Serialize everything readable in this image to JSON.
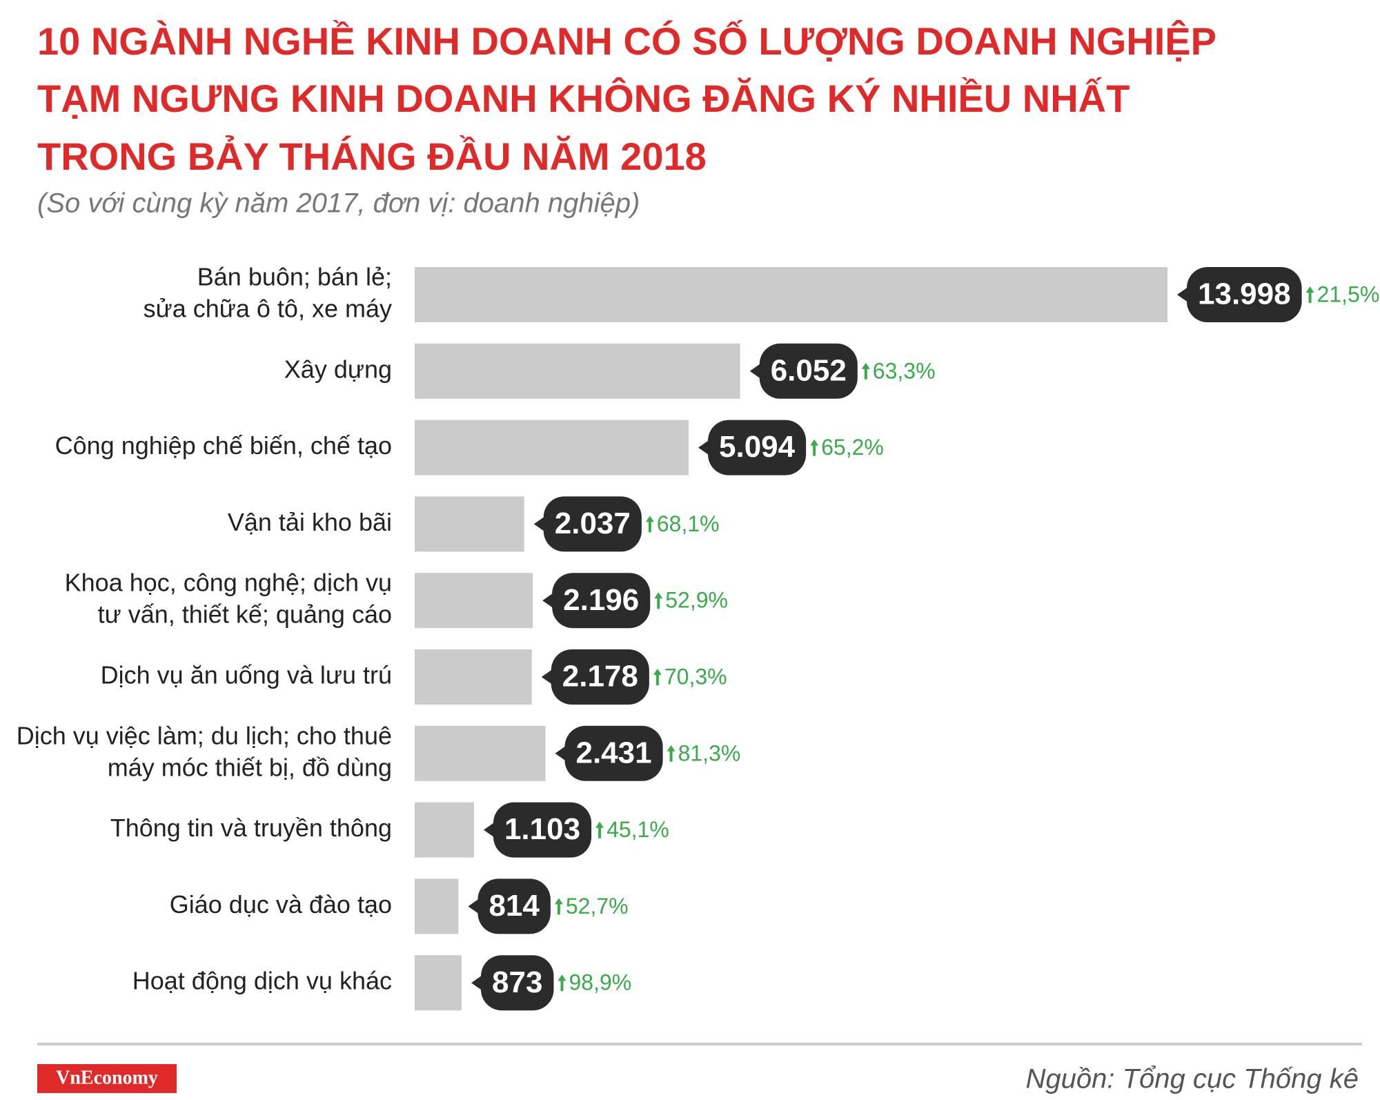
{
  "chart_data": {
    "type": "hbar",
    "title": [
      "10 NGÀNH NGHỀ KINH DOANH CÓ SỐ LƯỢNG DOANH NGHIỆP",
      "TẠM NGƯNG KINH DOANH KHÔNG ĐĂNG KÝ NHIỀU NHẤT",
      "TRONG BẢY THÁNG ĐẦU NĂM 2018"
    ],
    "subtitle": "(So với cùng kỳ năm 2017, đơn vị: doanh nghiệp)",
    "categories": [
      [
        "Bán buôn; bán lẻ;",
        "sửa chữa ô tô, xe máy"
      ],
      [
        "Xây dựng"
      ],
      [
        "Công nghiệp chế biến, chế tạo"
      ],
      [
        "Vận tải kho bãi"
      ],
      [
        "Khoa học, công nghệ; dịch vụ",
        "tư vấn, thiết kế; quảng cáo"
      ],
      [
        "Dịch vụ ăn uống và lưu trú"
      ],
      [
        "Dịch vụ việc làm; du lịch; cho thuê",
        "máy móc thiết bị, đồ dùng"
      ],
      [
        "Thông tin và truyền thông"
      ],
      [
        "Giáo dục và đào tạo"
      ],
      [
        "Hoạt động dịch vụ khác"
      ]
    ],
    "values": [
      13998,
      6052,
      5094,
      2037,
      2196,
      2178,
      2431,
      1103,
      814,
      873
    ],
    "value_labels": [
      "13.998",
      "6.052",
      "5.094",
      "2.037",
      "2.196",
      "2.178",
      "2.431",
      "1.103",
      "814",
      "873"
    ],
    "changes": [
      21.5,
      63.3,
      65.2,
      68.1,
      52.9,
      70.3,
      81.3,
      45.1,
      52.7,
      98.9
    ],
    "change_labels": [
      "21,5%",
      "63,3%",
      "65,2%",
      "68,1%",
      "52,9%",
      "70,3%",
      "81,3%",
      "45,1%",
      "52,7%",
      "98,9%"
    ],
    "color": "#cccbcb",
    "label_color": "#2b2b2b",
    "change_color": "#3aaa4a",
    "logo": "VnEconomy",
    "source": "Nguồn: Tổng cục Thống kê"
  }
}
